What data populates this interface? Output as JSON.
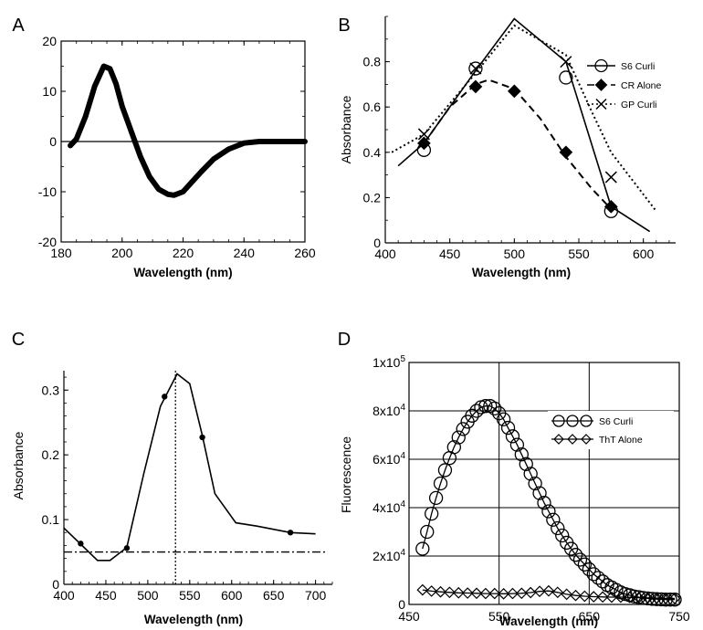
{
  "chart_data": [
    {
      "panel": "A",
      "type": "line",
      "xlabel": "Wavelength (nm)",
      "ylabel": "",
      "xlim": [
        180,
        260
      ],
      "ylim": [
        -20,
        20
      ],
      "xticks": [
        180,
        200,
        220,
        240,
        260
      ],
      "yticks": [
        -20,
        -10,
        0,
        10,
        20
      ],
      "grid": false,
      "reference_line_y": 0,
      "series": [
        {
          "x": [
            183,
            185,
            188,
            191,
            194,
            196,
            198,
            200,
            203,
            206,
            209,
            212,
            215,
            217,
            220,
            223,
            226,
            230,
            235,
            240,
            245,
            250,
            255,
            260
          ],
          "values": [
            -0.8,
            0.5,
            5,
            11,
            15,
            14.5,
            11.5,
            7,
            2,
            -3,
            -7,
            -9.5,
            -10.5,
            -10.7,
            -10,
            -8,
            -6,
            -3.5,
            -1.5,
            -0.3,
            0,
            0,
            0,
            0
          ]
        }
      ]
    },
    {
      "panel": "B",
      "type": "line",
      "xlabel": "Wavelength (nm)",
      "ylabel": "Absorbance",
      "xlim": [
        400,
        625
      ],
      "ylim": [
        0,
        1.0
      ],
      "xticks": [
        400,
        450,
        500,
        550,
        600
      ],
      "yticks": [
        0,
        0.2,
        0.4,
        0.6,
        0.8
      ],
      "grid": false,
      "legend_position": "top-right",
      "series": [
        {
          "name": "S6 Curli",
          "style": "solid",
          "marker": "circle",
          "x": [
            410,
            430,
            470,
            500,
            540,
            575,
            605
          ],
          "values": [
            0.34,
            0.44,
            0.76,
            0.99,
            0.8,
            0.16,
            0.05
          ],
          "marker_x": [
            430,
            470,
            540,
            575
          ],
          "marker_values": [
            0.41,
            0.77,
            0.73,
            0.14
          ]
        },
        {
          "name": "CR Alone",
          "style": "dashed",
          "marker": "filled-diamond",
          "x": [
            430,
            450,
            470,
            480,
            500,
            520,
            540,
            560,
            575
          ],
          "values": [
            0.44,
            0.6,
            0.7,
            0.72,
            0.68,
            0.55,
            0.38,
            0.24,
            0.15
          ],
          "marker_x": [
            430,
            470,
            500,
            540,
            575
          ],
          "marker_values": [
            0.44,
            0.69,
            0.67,
            0.4,
            0.16
          ]
        },
        {
          "name": "GP Curli",
          "style": "dotted",
          "marker": "x",
          "x": [
            405,
            430,
            470,
            500,
            540,
            560,
            575,
            610
          ],
          "values": [
            0.4,
            0.48,
            0.75,
            0.96,
            0.83,
            0.58,
            0.4,
            0.14
          ],
          "marker_x": [
            430,
            470,
            540,
            575
          ],
          "marker_values": [
            0.48,
            0.77,
            0.8,
            0.29
          ]
        }
      ]
    },
    {
      "panel": "C",
      "type": "line",
      "xlabel": "Wavelength (nm)",
      "ylabel": "Absorbance",
      "xlim": [
        400,
        720
      ],
      "ylim": [
        0,
        0.33
      ],
      "xticks": [
        400,
        450,
        500,
        550,
        600,
        650,
        700
      ],
      "yticks": [
        0,
        0.1,
        0.2,
        0.3
      ],
      "grid": false,
      "reference_line_y": 0.05,
      "reference_line_x": 533,
      "series": [
        {
          "x": [
            400,
            420,
            440,
            455,
            475,
            495,
            515,
            535,
            550,
            565,
            580,
            605,
            630,
            670,
            700
          ],
          "values": [
            0.087,
            0.062,
            0.037,
            0.037,
            0.057,
            0.17,
            0.275,
            0.325,
            0.31,
            0.23,
            0.14,
            0.095,
            0.09,
            0.08,
            0.078
          ],
          "marker_x": [
            420,
            475,
            520,
            565,
            670
          ],
          "marker_values": [
            0.063,
            0.056,
            0.29,
            0.227,
            0.08
          ]
        }
      ]
    },
    {
      "panel": "D",
      "type": "line",
      "xlabel": "Wavelength (nm)",
      "ylabel": "Fluorescence",
      "xlim": [
        450,
        750
      ],
      "ylim": [
        0,
        100000
      ],
      "xticks": [
        450,
        550,
        650,
        750
      ],
      "ytick_values": [
        0,
        20000,
        40000,
        60000,
        80000,
        100000
      ],
      "ytick_labels": [
        {
          "mantissa": "0",
          "exp": ""
        },
        {
          "mantissa": "2x10",
          "exp": "4"
        },
        {
          "mantissa": "4x10",
          "exp": "4"
        },
        {
          "mantissa": "6x10",
          "exp": "4"
        },
        {
          "mantissa": "8x10",
          "exp": "4"
        },
        {
          "mantissa": "1x10",
          "exp": "5"
        }
      ],
      "grid": true,
      "legend_position": "top-right",
      "series": [
        {
          "name": "S6 Curli",
          "marker": "open-circle",
          "x": [
            465,
            470,
            475,
            480,
            485,
            490,
            495,
            500,
            505,
            510,
            515,
            520,
            525,
            530,
            535,
            540,
            545,
            550,
            555,
            560,
            565,
            570,
            575,
            580,
            585,
            590,
            595,
            600,
            605,
            610,
            615,
            620,
            625,
            630,
            635,
            640,
            645,
            650,
            655,
            660,
            665,
            670,
            675,
            680,
            685,
            690,
            695,
            700,
            705,
            710,
            715,
            720,
            725,
            730,
            735,
            740,
            745
          ],
          "values": [
            23000,
            30000,
            37500,
            44000,
            50000,
            55500,
            60500,
            65000,
            69000,
            72500,
            75500,
            78000,
            80000,
            81500,
            82000,
            82000,
            81000,
            79000,
            76500,
            73000,
            69500,
            66000,
            62000,
            58000,
            54000,
            50000,
            46000,
            42000,
            38500,
            35000,
            31500,
            28500,
            25500,
            23000,
            20500,
            18500,
            16500,
            14500,
            12500,
            11000,
            9500,
            8000,
            7000,
            6000,
            5000,
            4300,
            3800,
            3300,
            3000,
            2700,
            2500,
            2300,
            2200,
            2100,
            2000,
            2000,
            2000
          ]
        },
        {
          "name": "ThT Alone",
          "marker": "open-diamond",
          "x": [
            465,
            475,
            485,
            495,
            505,
            515,
            525,
            535,
            545,
            555,
            565,
            575,
            585,
            595,
            605,
            615,
            625,
            635,
            645,
            655,
            665,
            675,
            685,
            695,
            705,
            715,
            725,
            735,
            745
          ],
          "values": [
            6000,
            5500,
            5200,
            5000,
            4800,
            4700,
            4600,
            4500,
            4500,
            4400,
            4500,
            4600,
            4900,
            5400,
            5600,
            5000,
            4200,
            3700,
            3400,
            3200,
            3100,
            3000,
            3000,
            2900,
            2800,
            2700,
            2600,
            2500,
            2500
          ]
        }
      ]
    }
  ]
}
